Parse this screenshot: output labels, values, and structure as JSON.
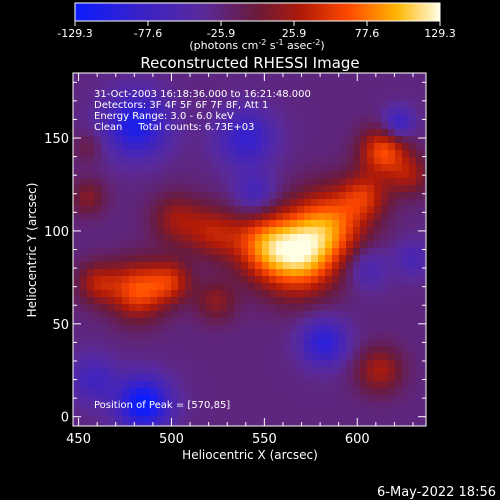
{
  "chart_data": {
    "type": "heatmap",
    "title": "Reconstructed RHESSI Image",
    "xlabel": "Heliocentric X (arcsec)",
    "ylabel": "Heliocentric Y (arcsec)",
    "xlim": [
      447,
      637
    ],
    "ylim": [
      -5,
      185
    ],
    "x_ticks": [
      450,
      500,
      550,
      600
    ],
    "y_ticks": [
      0,
      50,
      100,
      150
    ],
    "colorbar": {
      "ticks": [
        "-129.3",
        "-77.6",
        "-25.9",
        "25.9",
        "77.6",
        "129.3"
      ],
      "range": [
        -129.3,
        129.3
      ],
      "units_label": "(photons cm",
      "units_sup1": "-2",
      "units_mid": " s",
      "units_sup2": "-1",
      "units_mid2": " asec",
      "units_sup3": "-2",
      "units_end": ")"
    },
    "annotations": [
      "31-Oct-2003 16:18:36.000 to 16:21:48.000",
      "Detectors: 3F 4F 5F 6F 7F 8F, Att 1",
      "Energy Range: 3.0 - 6.0 keV",
      "Clean     Total counts: 6.73E+03"
    ],
    "peak_label": "Position of Peak = [570,85]",
    "sources": [
      {
        "x": 568,
        "y": 87,
        "sigma": 15,
        "amp": 129
      },
      {
        "x": 586,
        "y": 104,
        "sigma": 14,
        "amp": 85
      },
      {
        "x": 548,
        "y": 93,
        "sigma": 12,
        "amp": 70
      },
      {
        "x": 523,
        "y": 99,
        "sigma": 10,
        "amp": 55
      },
      {
        "x": 503,
        "y": 106,
        "sigma": 10,
        "amp": 50
      },
      {
        "x": 482,
        "y": 68,
        "sigma": 11,
        "amp": 92
      },
      {
        "x": 460,
        "y": 72,
        "sigma": 8,
        "amp": 55
      },
      {
        "x": 500,
        "y": 73,
        "sigma": 8,
        "amp": 60
      },
      {
        "x": 524,
        "y": 62,
        "sigma": 8,
        "amp": 42
      },
      {
        "x": 614,
        "y": 143,
        "sigma": 9,
        "amp": 88
      },
      {
        "x": 604,
        "y": 119,
        "sigma": 9,
        "amp": 60
      },
      {
        "x": 628,
        "y": 130,
        "sigma": 8,
        "amp": 50
      },
      {
        "x": 612,
        "y": 25,
        "sigma": 9,
        "amp": 55
      },
      {
        "x": 455,
        "y": 118,
        "sigma": 7,
        "amp": 40
      },
      {
        "x": 455,
        "y": 145,
        "sigma": 6,
        "amp": 25
      },
      {
        "x": 481,
        "y": 157,
        "sigma": 12,
        "amp": -85
      },
      {
        "x": 485,
        "y": 7,
        "sigma": 10,
        "amp": -105
      },
      {
        "x": 540,
        "y": 150,
        "sigma": 11,
        "amp": -60
      },
      {
        "x": 582,
        "y": 40,
        "sigma": 9,
        "amp": -70
      },
      {
        "x": 545,
        "y": 120,
        "sigma": 8,
        "amp": -45
      },
      {
        "x": 605,
        "y": 80,
        "sigma": 8,
        "amp": -40
      },
      {
        "x": 622,
        "y": 158,
        "sigma": 6,
        "amp": -60
      },
      {
        "x": 458,
        "y": 20,
        "sigma": 9,
        "amp": -45
      },
      {
        "x": 630,
        "y": 85,
        "sigma": 7,
        "amp": -35
      }
    ],
    "background": -28
  },
  "footer": {
    "date": "6-May-2022 18:56"
  }
}
